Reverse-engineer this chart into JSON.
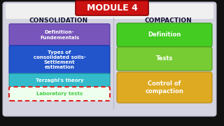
{
  "title": "MODULE 4",
  "title_bg": "#cc1111",
  "title_text_color": "#ffffff",
  "outer_bg": "#111111",
  "panel_bg": "#d4d4e0",
  "left_title": "CONSOLIDATION",
  "right_title": "COMPACTION",
  "left_boxes": [
    {
      "text": "Definition-\nFundementals",
      "color": "#7755bb",
      "edge": "#5533aa",
      "dashed": false,
      "text_color": "#ffffff"
    },
    {
      "text": "Types of\nconsolidated soils-\nSettlement\nestimation",
      "color": "#2255cc",
      "edge": "#1133aa",
      "dashed": false,
      "text_color": "#ffffff"
    },
    {
      "text": "Terzaghi's theory",
      "color": "#33bbcc",
      "edge": "#229999",
      "dashed": false,
      "text_color": "#ffffff"
    },
    {
      "text": "Laboratory tests",
      "color": "#eeffee",
      "edge": "#dd2222",
      "dashed": true,
      "text_color": "#44cc44"
    }
  ],
  "right_boxes": [
    {
      "text": "Definition",
      "color": "#44cc22",
      "edge": "#339911"
    },
    {
      "text": "Tests",
      "color": "#77cc33",
      "edge": "#559922"
    },
    {
      "text": "Control of\ncompaction",
      "color": "#ddaa22",
      "edge": "#bb8811"
    }
  ],
  "section_title_color": "#111133",
  "divider_color": "#bbbbcc",
  "panel_edge": "#bbbbcc"
}
